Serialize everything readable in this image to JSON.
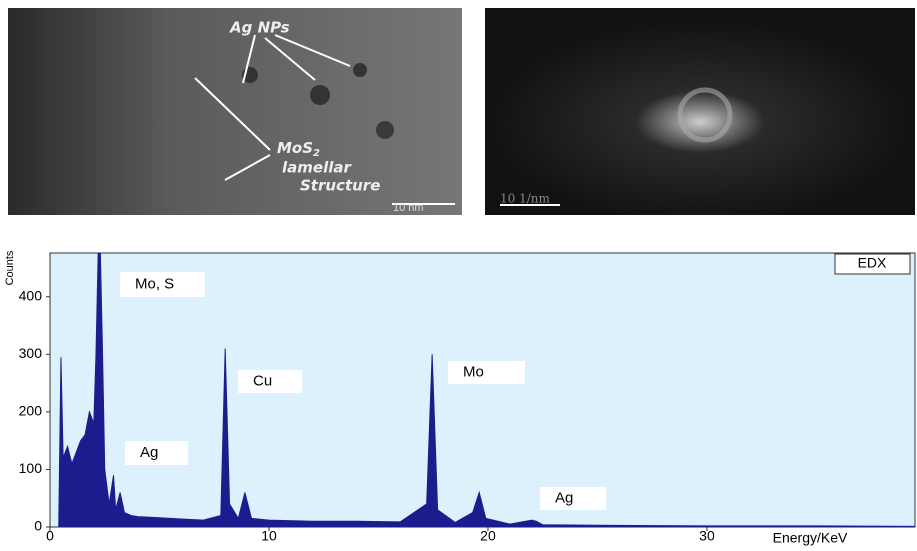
{
  "panels": {
    "tem": {
      "label_nps": "Ag NPs",
      "label_mos": "MoS",
      "label_mos_sub": "2",
      "label_lamellar": "lamellar",
      "label_structure": "Structure",
      "scale_bar": "10 nm"
    },
    "fft": {
      "scale_bar": "10 1/nm"
    }
  },
  "chart_data": {
    "type": "area",
    "title": "EDX",
    "xlabel": "Energy/KeV",
    "ylabel": "Counts",
    "x": [
      0.4,
      0.5,
      0.6,
      0.8,
      1.0,
      1.2,
      1.4,
      1.6,
      1.8,
      2.0,
      2.1,
      2.2,
      2.3,
      2.4,
      2.5,
      2.7,
      2.9,
      3.0,
      3.2,
      3.4,
      3.7,
      4.0,
      5,
      6,
      7,
      7.8,
      8.0,
      8.2,
      8.6,
      8.9,
      9.2,
      10,
      12,
      14,
      16,
      17.2,
      17.45,
      17.7,
      18.5,
      19.3,
      19.6,
      19.9,
      21,
      22.0,
      22.2,
      22.5,
      25,
      30,
      35,
      39.5
    ],
    "series": [
      {
        "color": "#1c1c8e",
        "values": [
          5,
          295,
          120,
          140,
          110,
          130,
          150,
          160,
          200,
          180,
          300,
          476,
          476,
          300,
          100,
          40,
          90,
          30,
          60,
          25,
          20,
          18,
          16,
          14,
          12,
          20,
          310,
          40,
          15,
          60,
          15,
          12,
          10,
          10,
          9,
          40,
          300,
          30,
          8,
          25,
          60,
          15,
          5,
          12,
          10,
          4,
          3,
          2,
          2,
          1
        ]
      }
    ],
    "annotations": [
      "Mo, S",
      "Cu",
      "Mo",
      "Ag",
      "Ag"
    ],
    "background": "#dcf1fb",
    "xlim": [
      0,
      39.5
    ],
    "ylim": [
      0,
      476
    ],
    "xticks": [
      0,
      10,
      20,
      30
    ],
    "yticks": [
      0,
      100,
      200,
      300,
      400
    ]
  }
}
